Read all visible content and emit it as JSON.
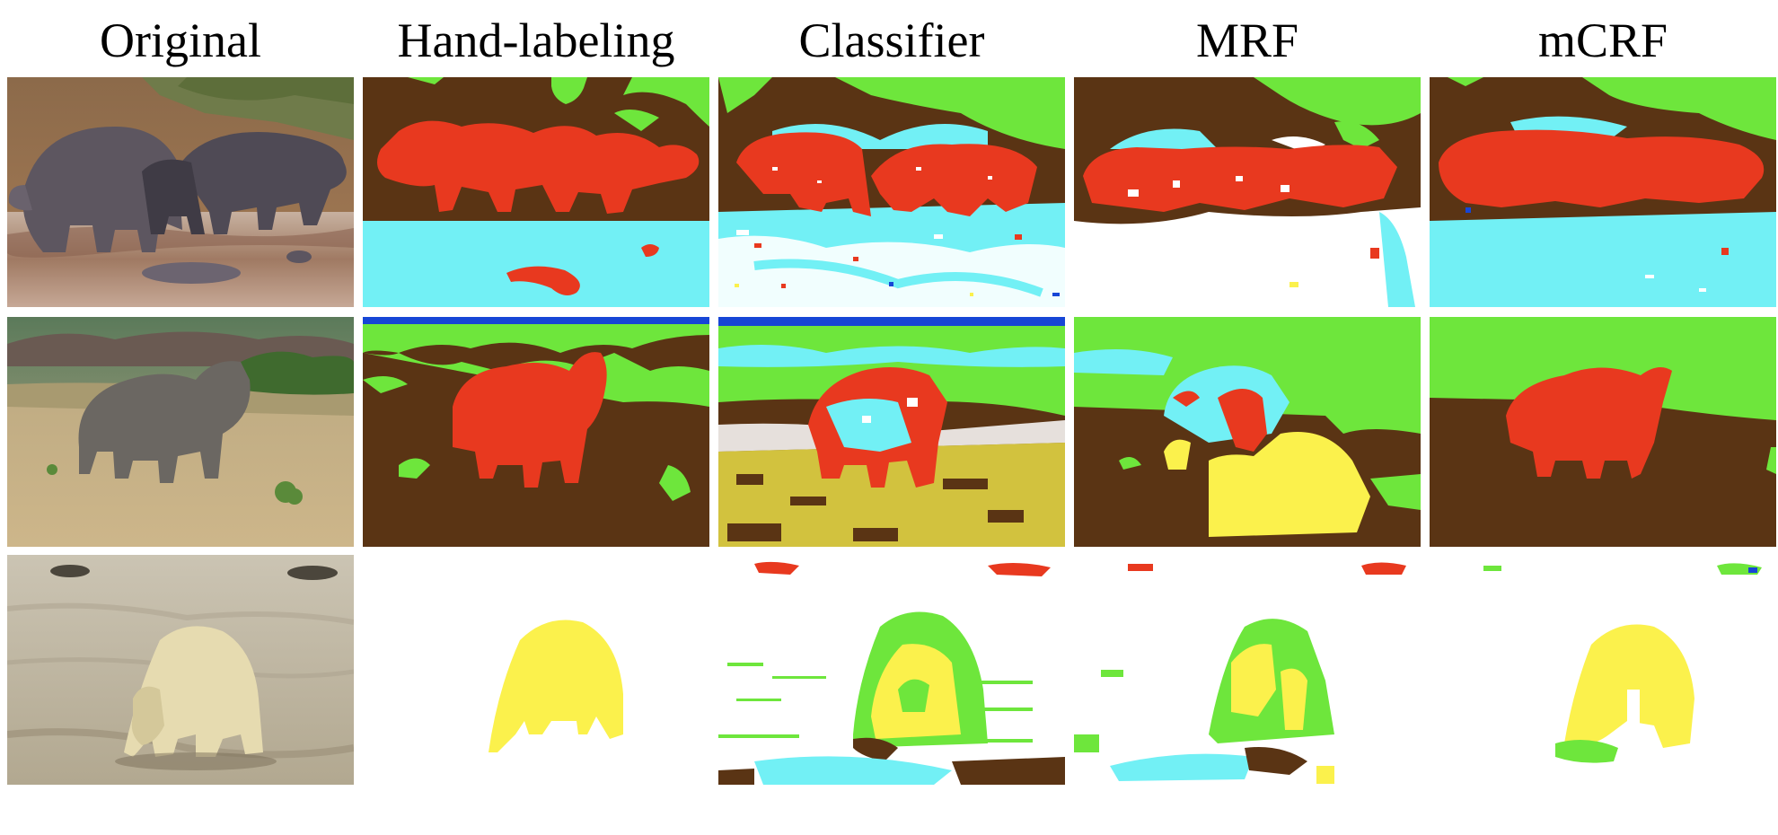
{
  "headers": [
    "Original",
    "Hand-labeling",
    "Classifier",
    "MRF",
    "mCRF"
  ],
  "rows": [
    {
      "subject": "hippopotamus"
    },
    {
      "subject": "rhinoceros"
    },
    {
      "subject": "polar bear"
    }
  ],
  "colors": {
    "animal_red": "#e8391f",
    "ground_brown": "#5a3414",
    "vegetation_green": "#6ee63c",
    "water_cyan": "#72f0f5",
    "sky_blue": "#1746d6",
    "snow_white": "#ffffff",
    "polar_yellow": "#fbf14c"
  }
}
